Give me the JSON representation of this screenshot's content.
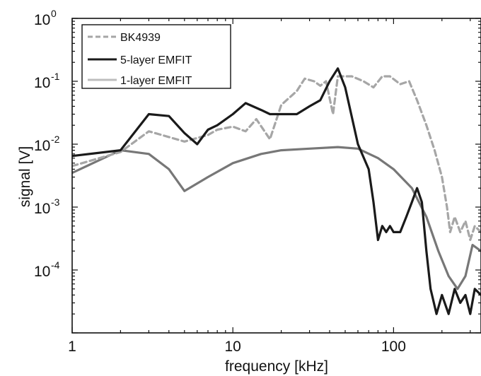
{
  "chart_data": {
    "type": "line",
    "title": "",
    "xlabel": "frequency [kHz]",
    "ylabel": "signal [V]",
    "xscale": "log",
    "yscale": "log",
    "xlim": [
      1,
      350
    ],
    "ylim": [
      1e-05,
      1
    ],
    "grid": false,
    "legend_position": "top-left",
    "x_ticks": [
      {
        "value": 1,
        "label": "1"
      },
      {
        "value": 10,
        "label": "10"
      },
      {
        "value": 100,
        "label": "100"
      }
    ],
    "y_ticks": [
      {
        "value": 1,
        "base": "10",
        "exp": "0"
      },
      {
        "value": 0.1,
        "base": "10",
        "exp": "-1"
      },
      {
        "value": 0.01,
        "base": "10",
        "exp": "-2"
      },
      {
        "value": 0.001,
        "base": "10",
        "exp": "-3"
      },
      {
        "value": 0.0001,
        "base": "10",
        "exp": "-4"
      }
    ],
    "series": [
      {
        "name": "BK4939",
        "color": "#a6a6a6",
        "dash": "dashed",
        "points": [
          [
            1,
            0.0045
          ],
          [
            2,
            0.0075
          ],
          [
            3,
            0.016
          ],
          [
            4,
            0.013
          ],
          [
            5,
            0.011
          ],
          [
            7,
            0.014
          ],
          [
            8,
            0.017
          ],
          [
            10,
            0.019
          ],
          [
            12,
            0.016
          ],
          [
            14,
            0.025
          ],
          [
            17,
            0.012
          ],
          [
            20,
            0.042
          ],
          [
            25,
            0.07
          ],
          [
            28,
            0.11
          ],
          [
            32,
            0.1
          ],
          [
            35,
            0.085
          ],
          [
            38,
            0.1
          ],
          [
            42,
            0.03
          ],
          [
            45,
            0.12
          ],
          [
            55,
            0.12
          ],
          [
            65,
            0.1
          ],
          [
            75,
            0.08
          ],
          [
            85,
            0.12
          ],
          [
            95,
            0.12
          ],
          [
            110,
            0.09
          ],
          [
            125,
            0.1
          ],
          [
            140,
            0.05
          ],
          [
            160,
            0.02
          ],
          [
            180,
            0.008
          ],
          [
            200,
            0.003
          ],
          [
            215,
            0.001
          ],
          [
            225,
            0.0004
          ],
          [
            240,
            0.0007
          ],
          [
            260,
            0.0004
          ],
          [
            280,
            0.0006
          ],
          [
            300,
            0.0003
          ],
          [
            320,
            0.0005
          ],
          [
            350,
            0.0004
          ]
        ]
      },
      {
        "name": "5-layer EMFIT",
        "color": "#1a1a1a",
        "dash": "solid",
        "points": [
          [
            1,
            0.0065
          ],
          [
            2,
            0.008
          ],
          [
            3,
            0.03
          ],
          [
            4,
            0.028
          ],
          [
            5,
            0.015
          ],
          [
            6,
            0.01
          ],
          [
            7,
            0.017
          ],
          [
            8,
            0.02
          ],
          [
            10,
            0.03
          ],
          [
            12,
            0.045
          ],
          [
            15,
            0.035
          ],
          [
            17,
            0.03
          ],
          [
            20,
            0.03
          ],
          [
            25,
            0.03
          ],
          [
            30,
            0.04
          ],
          [
            35,
            0.05
          ],
          [
            40,
            0.1
          ],
          [
            45,
            0.16
          ],
          [
            50,
            0.08
          ],
          [
            60,
            0.01
          ],
          [
            70,
            0.004
          ],
          [
            75,
            0.0012
          ],
          [
            80,
            0.0003
          ],
          [
            85,
            0.0005
          ],
          [
            90,
            0.0004
          ],
          [
            95,
            0.0005
          ],
          [
            100,
            0.0004
          ],
          [
            110,
            0.0004
          ],
          [
            120,
            0.0007
          ],
          [
            130,
            0.0012
          ],
          [
            140,
            0.002
          ],
          [
            150,
            0.0012
          ],
          [
            160,
            0.0002
          ],
          [
            170,
            5e-05
          ],
          [
            185,
            2e-05
          ],
          [
            200,
            4e-05
          ],
          [
            220,
            2e-05
          ],
          [
            240,
            5e-05
          ],
          [
            260,
            3e-05
          ],
          [
            280,
            4e-05
          ],
          [
            300,
            2e-05
          ],
          [
            320,
            5e-05
          ],
          [
            350,
            4e-05
          ]
        ]
      },
      {
        "name": "1-layer EMFIT",
        "color": "#777777",
        "dash": "solid",
        "points": [
          [
            1,
            0.0035
          ],
          [
            2,
            0.008
          ],
          [
            3,
            0.007
          ],
          [
            4,
            0.004
          ],
          [
            5,
            0.0018
          ],
          [
            7,
            0.003
          ],
          [
            10,
            0.005
          ],
          [
            15,
            0.007
          ],
          [
            20,
            0.008
          ],
          [
            30,
            0.0085
          ],
          [
            45,
            0.009
          ],
          [
            60,
            0.0085
          ],
          [
            80,
            0.006
          ],
          [
            100,
            0.004
          ],
          [
            130,
            0.002
          ],
          [
            160,
            0.0007
          ],
          [
            190,
            0.0002
          ],
          [
            220,
            8e-05
          ],
          [
            250,
            5e-05
          ],
          [
            280,
            8e-05
          ],
          [
            310,
            0.00025
          ],
          [
            350,
            0.0002
          ]
        ]
      }
    ]
  },
  "style": {
    "legend_third_entry_color": "#bdbdbd"
  }
}
